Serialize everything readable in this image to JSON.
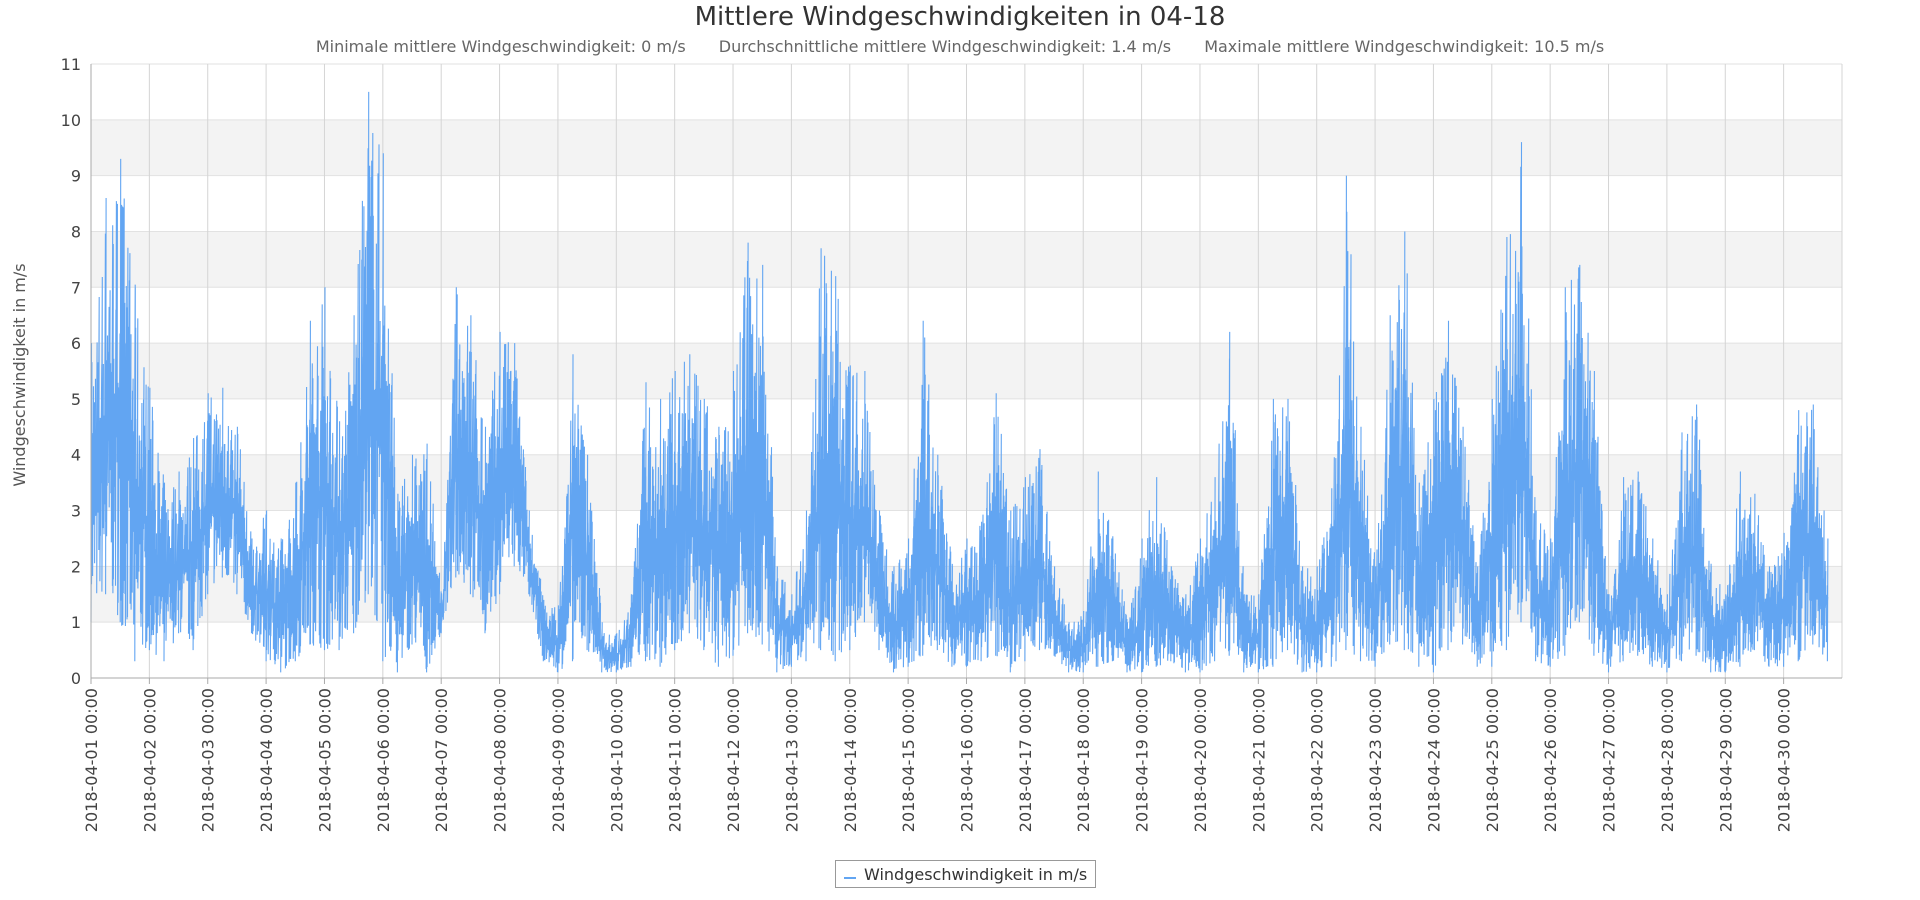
{
  "chart_data": {
    "type": "line",
    "title": "Mittlere Windgeschwindigkeiten in 04-18",
    "subtitle": [
      "Minimale mittlere Windgeschwindigkeit: 0 m/s",
      "Durchschnittliche mittlere Windgeschwindigkeit: 1.4 m/s",
      "Maximale mittlere Windgeschwindigkeit: 10.5 m/s"
    ],
    "xlabel": "",
    "ylabel": "Windgeschwindigkeit in m/s",
    "ylim": [
      0,
      11
    ],
    "yticks": [
      "0",
      "1",
      "2",
      "3",
      "4",
      "5",
      "6",
      "7",
      "8",
      "9",
      "10",
      "11"
    ],
    "xlim": [
      "2018-04-01 00:00",
      "2018-05-01 00:00"
    ],
    "xticks": [
      "2018-04-01 00:00",
      "2018-04-02 00:00",
      "2018-04-03 00:00",
      "2018-04-04 00:00",
      "2018-04-05 00:00",
      "2018-04-06 00:00",
      "2018-04-07 00:00",
      "2018-04-08 00:00",
      "2018-04-09 00:00",
      "2018-04-10 00:00",
      "2018-04-11 00:00",
      "2018-04-12 00:00",
      "2018-04-13 00:00",
      "2018-04-14 00:00",
      "2018-04-15 00:00",
      "2018-04-16 00:00",
      "2018-04-17 00:00",
      "2018-04-18 00:00",
      "2018-04-19 00:00",
      "2018-04-20 00:00",
      "2018-04-21 00:00",
      "2018-04-22 00:00",
      "2018-04-23 00:00",
      "2018-04-24 00:00",
      "2018-04-25 00:00",
      "2018-04-26 00:00",
      "2018-04-27 00:00",
      "2018-04-28 00:00",
      "2018-04-29 00:00",
      "2018-04-30 00:00"
    ],
    "grid": true,
    "legend": "bottom-center",
    "series": [
      {
        "name": "Windgeschwindigkeit in m/s",
        "color": "#62a5f2",
        "x": [
          "2018-04-01 00:00",
          "2018-04-01 06:00",
          "2018-04-01 12:00",
          "2018-04-01 18:00",
          "2018-04-02 00:00",
          "2018-04-02 06:00",
          "2018-04-02 12:00",
          "2018-04-02 18:00",
          "2018-04-03 00:00",
          "2018-04-03 06:00",
          "2018-04-03 12:00",
          "2018-04-03 18:00",
          "2018-04-04 00:00",
          "2018-04-04 06:00",
          "2018-04-04 12:00",
          "2018-04-04 18:00",
          "2018-04-05 00:00",
          "2018-04-05 06:00",
          "2018-04-05 12:00",
          "2018-04-05 18:00",
          "2018-04-06 00:00",
          "2018-04-06 06:00",
          "2018-04-06 12:00",
          "2018-04-06 18:00",
          "2018-04-07 00:00",
          "2018-04-07 06:00",
          "2018-04-07 12:00",
          "2018-04-07 18:00",
          "2018-04-08 00:00",
          "2018-04-08 06:00",
          "2018-04-08 12:00",
          "2018-04-08 18:00",
          "2018-04-09 00:00",
          "2018-04-09 06:00",
          "2018-04-09 12:00",
          "2018-04-09 18:00",
          "2018-04-10 00:00",
          "2018-04-10 06:00",
          "2018-04-10 12:00",
          "2018-04-10 18:00",
          "2018-04-11 00:00",
          "2018-04-11 06:00",
          "2018-04-11 12:00",
          "2018-04-11 18:00",
          "2018-04-12 00:00",
          "2018-04-12 06:00",
          "2018-04-12 12:00",
          "2018-04-12 18:00",
          "2018-04-13 00:00",
          "2018-04-13 06:00",
          "2018-04-13 12:00",
          "2018-04-13 18:00",
          "2018-04-14 00:00",
          "2018-04-14 06:00",
          "2018-04-14 12:00",
          "2018-04-14 18:00",
          "2018-04-15 00:00",
          "2018-04-15 06:00",
          "2018-04-15 12:00",
          "2018-04-15 18:00",
          "2018-04-16 00:00",
          "2018-04-16 06:00",
          "2018-04-16 12:00",
          "2018-04-16 18:00",
          "2018-04-17 00:00",
          "2018-04-17 06:00",
          "2018-04-17 12:00",
          "2018-04-17 18:00",
          "2018-04-18 00:00",
          "2018-04-18 06:00",
          "2018-04-18 12:00",
          "2018-04-18 18:00",
          "2018-04-19 00:00",
          "2018-04-19 06:00",
          "2018-04-19 12:00",
          "2018-04-19 18:00",
          "2018-04-20 00:00",
          "2018-04-20 06:00",
          "2018-04-20 12:00",
          "2018-04-20 18:00",
          "2018-04-21 00:00",
          "2018-04-21 06:00",
          "2018-04-21 12:00",
          "2018-04-21 18:00",
          "2018-04-22 00:00",
          "2018-04-22 06:00",
          "2018-04-22 12:00",
          "2018-04-22 18:00",
          "2018-04-23 00:00",
          "2018-04-23 06:00",
          "2018-04-23 12:00",
          "2018-04-23 18:00",
          "2018-04-24 00:00",
          "2018-04-24 06:00",
          "2018-04-24 12:00",
          "2018-04-24 18:00",
          "2018-04-25 00:00",
          "2018-04-25 06:00",
          "2018-04-25 12:00",
          "2018-04-25 18:00",
          "2018-04-26 00:00",
          "2018-04-26 06:00",
          "2018-04-26 12:00",
          "2018-04-26 18:00",
          "2018-04-27 00:00",
          "2018-04-27 06:00",
          "2018-04-27 12:00",
          "2018-04-27 18:00",
          "2018-04-28 00:00",
          "2018-04-28 06:00",
          "2018-04-28 12:00",
          "2018-04-28 18:00",
          "2018-04-29 00:00",
          "2018-04-29 06:00",
          "2018-04-29 12:00",
          "2018-04-29 18:00",
          "2018-04-30 00:00",
          "2018-04-30 06:00",
          "2018-04-30 12:00",
          "2018-04-30 18:00"
        ],
        "low": [
          1.0,
          1.5,
          1.0,
          0.3,
          0.5,
          0.3,
          0.8,
          0.5,
          1.5,
          1.8,
          1.5,
          0.8,
          0.3,
          0.1,
          0.3,
          0.6,
          0.5,
          0.5,
          0.8,
          1.5,
          0.3,
          0.1,
          0.6,
          0.1,
          0.8,
          1.8,
          1.5,
          0.8,
          1.5,
          2.0,
          1.5,
          0.3,
          0.1,
          0.3,
          0.5,
          0.1,
          0.1,
          0.2,
          0.3,
          0.2,
          0.5,
          0.8,
          0.5,
          0.2,
          0.4,
          0.8,
          0.6,
          0.1,
          0.2,
          0.3,
          0.5,
          0.3,
          0.5,
          1.0,
          0.5,
          0.1,
          0.2,
          0.4,
          0.5,
          0.2,
          0.2,
          0.3,
          0.4,
          0.1,
          0.3,
          0.5,
          0.4,
          0.1,
          0.1,
          0.2,
          0.3,
          0.1,
          0.1,
          0.2,
          0.3,
          0.1,
          0.1,
          0.3,
          0.4,
          0.1,
          0.1,
          0.2,
          0.5,
          0.1,
          0.1,
          0.2,
          0.5,
          0.3,
          0.2,
          0.6,
          0.5,
          0.2,
          0.1,
          0.5,
          0.6,
          0.2,
          0.2,
          0.5,
          1.0,
          0.3,
          0.2,
          0.4,
          1.0,
          0.4,
          0.1,
          0.3,
          0.4,
          0.2,
          0.1,
          0.3,
          0.4,
          0.1,
          0.1,
          0.2,
          0.5,
          0.2,
          0.2,
          0.3,
          0.6,
          0.3
        ],
        "high": [
          6.0,
          8.6,
          9.3,
          7.0,
          5.2,
          3.5,
          3.7,
          4.3,
          5.1,
          5.2,
          4.5,
          2.5,
          3.0,
          2.5,
          3.5,
          6.4,
          7.0,
          4.6,
          6.5,
          10.5,
          9.4,
          3.3,
          4.0,
          4.2,
          1.5,
          7.0,
          6.5,
          4.5,
          6.2,
          6.0,
          3.0,
          1.4,
          1.3,
          5.8,
          4.0,
          1.0,
          0.8,
          1.5,
          5.3,
          5.0,
          5.5,
          5.8,
          5.0,
          4.5,
          5.5,
          7.8,
          7.4,
          2.0,
          1.5,
          3.0,
          7.7,
          7.2,
          5.6,
          5.5,
          3.0,
          2.0,
          2.5,
          6.4,
          4.0,
          2.0,
          2.5,
          2.8,
          5.1,
          3.0,
          3.6,
          4.1,
          2.0,
          1.0,
          1.2,
          3.7,
          2.5,
          1.0,
          2.5,
          3.6,
          2.0,
          1.5,
          2.5,
          3.6,
          6.2,
          1.5,
          1.5,
          5.0,
          5.0,
          2.0,
          2.0,
          3.4,
          9.0,
          4.5,
          2.0,
          6.5,
          8.0,
          3.5,
          5.0,
          6.4,
          4.5,
          2.0,
          5.0,
          7.9,
          9.6,
          3.0,
          2.5,
          7.0,
          7.4,
          5.5,
          1.5,
          3.6,
          3.7,
          2.5,
          1.5,
          4.4,
          4.9,
          2.0,
          1.5,
          3.7,
          3.3,
          2.0,
          2.6,
          4.8,
          4.9,
          2.5
        ]
      }
    ]
  }
}
